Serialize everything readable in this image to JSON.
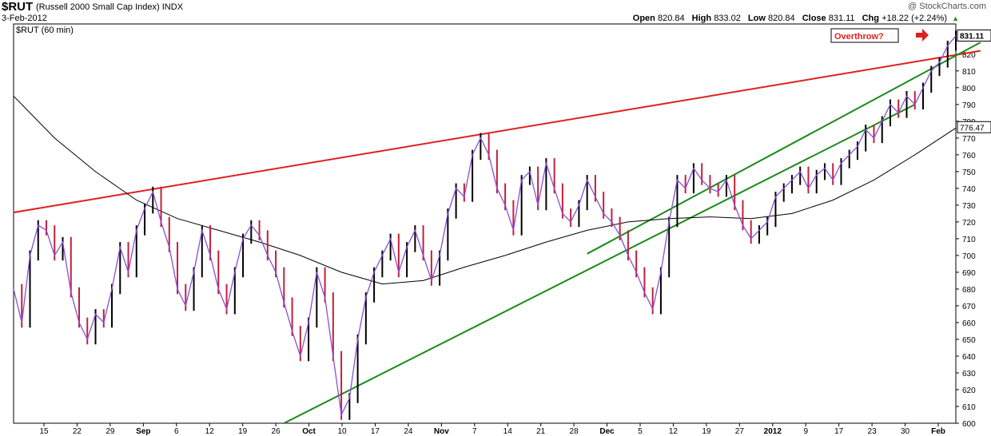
{
  "header": {
    "symbol": "$RUT",
    "name": "(Russell 2000 Small Cap Index)",
    "exchange": "INDX",
    "date": "3-Feb-2012",
    "watermark": "@ StockCharts.com",
    "open_label": "Open",
    "open": "820.84",
    "high_label": "High",
    "high": "833.02",
    "low_label": "Low",
    "low": "820.84",
    "close_label": "Close",
    "close": "831.11",
    "chg_label": "Chg",
    "chg": "+18.22 (+2.24%)",
    "up_arrow": "▲"
  },
  "chart_data": {
    "type": "line",
    "title": "$RUT (60 min)",
    "ylim": [
      600,
      838
    ],
    "y_ticks": [
      600,
      610,
      620,
      630,
      640,
      650,
      660,
      670,
      680,
      690,
      700,
      710,
      720,
      730,
      740,
      750,
      760,
      770,
      780,
      790,
      800,
      810,
      820
    ],
    "x_ticks": [
      {
        "label": "15",
        "bold": false
      },
      {
        "label": "22",
        "bold": false
      },
      {
        "label": "29",
        "bold": false
      },
      {
        "label": "Sep",
        "bold": true
      },
      {
        "label": "6",
        "bold": false
      },
      {
        "label": "12",
        "bold": false
      },
      {
        "label": "19",
        "bold": false
      },
      {
        "label": "26",
        "bold": false
      },
      {
        "label": "Oct",
        "bold": true
      },
      {
        "label": "10",
        "bold": false
      },
      {
        "label": "17",
        "bold": false
      },
      {
        "label": "24",
        "bold": false
      },
      {
        "label": "Nov",
        "bold": true
      },
      {
        "label": "7",
        "bold": false
      },
      {
        "label": "14",
        "bold": false
      },
      {
        "label": "21",
        "bold": false
      },
      {
        "label": "28",
        "bold": false
      },
      {
        "label": "Dec",
        "bold": true
      },
      {
        "label": "5",
        "bold": false
      },
      {
        "label": "12",
        "bold": false
      },
      {
        "label": "19",
        "bold": false
      },
      {
        "label": "27",
        "bold": false
      },
      {
        "label": "2012",
        "bold": true
      },
      {
        "label": "9",
        "bold": false
      },
      {
        "label": "17",
        "bold": false
      },
      {
        "label": "23",
        "bold": false
      },
      {
        "label": "30",
        "bold": false
      },
      {
        "label": "Feb",
        "bold": true
      }
    ],
    "series": [
      {
        "points": [
          [
            0,
            680
          ],
          [
            1,
            660
          ],
          [
            2,
            700
          ],
          [
            3,
            718
          ],
          [
            4,
            715
          ],
          [
            5,
            700
          ],
          [
            6,
            708
          ],
          [
            7,
            678
          ],
          [
            8,
            660
          ],
          [
            9,
            650
          ],
          [
            10,
            665
          ],
          [
            11,
            660
          ],
          [
            12,
            680
          ],
          [
            13,
            705
          ],
          [
            14,
            690
          ],
          [
            15,
            715
          ],
          [
            16,
            728
          ],
          [
            17,
            738
          ],
          [
            18,
            720
          ],
          [
            19,
            705
          ],
          [
            20,
            680
          ],
          [
            21,
            670
          ],
          [
            22,
            690
          ],
          [
            23,
            715
          ],
          [
            24,
            700
          ],
          [
            25,
            680
          ],
          [
            26,
            668
          ],
          [
            27,
            690
          ],
          [
            28,
            710
          ],
          [
            29,
            718
          ],
          [
            30,
            712
          ],
          [
            31,
            700
          ],
          [
            32,
            690
          ],
          [
            33,
            672
          ],
          [
            34,
            655
          ],
          [
            35,
            640
          ],
          [
            36,
            660
          ],
          [
            37,
            690
          ],
          [
            38,
            675
          ],
          [
            39,
            640
          ],
          [
            40,
            605
          ],
          [
            41,
            615
          ],
          [
            42,
            650
          ],
          [
            43,
            675
          ],
          [
            44,
            690
          ],
          [
            45,
            700
          ],
          [
            46,
            710
          ],
          [
            47,
            690
          ],
          [
            48,
            705
          ],
          [
            49,
            715
          ],
          [
            50,
            700
          ],
          [
            51,
            685
          ],
          [
            52,
            700
          ],
          [
            53,
            725
          ],
          [
            54,
            740
          ],
          [
            55,
            735
          ],
          [
            56,
            760
          ],
          [
            57,
            770
          ],
          [
            58,
            760
          ],
          [
            59,
            740
          ],
          [
            60,
            730
          ],
          [
            61,
            715
          ],
          [
            62,
            745
          ],
          [
            63,
            750
          ],
          [
            64,
            730
          ],
          [
            65,
            755
          ],
          [
            66,
            740
          ],
          [
            67,
            725
          ],
          [
            68,
            720
          ],
          [
            69,
            730
          ],
          [
            70,
            745
          ],
          [
            71,
            735
          ],
          [
            72,
            725
          ],
          [
            73,
            720
          ],
          [
            74,
            712
          ],
          [
            75,
            700
          ],
          [
            76,
            690
          ],
          [
            77,
            678
          ],
          [
            78,
            668
          ],
          [
            79,
            690
          ],
          [
            80,
            720
          ],
          [
            81,
            745
          ],
          [
            82,
            740
          ],
          [
            83,
            752
          ],
          [
            84,
            745
          ],
          [
            85,
            740
          ],
          [
            86,
            738
          ],
          [
            87,
            745
          ],
          [
            88,
            730
          ],
          [
            89,
            718
          ],
          [
            90,
            710
          ],
          [
            91,
            715
          ],
          [
            92,
            720
          ],
          [
            93,
            735
          ],
          [
            94,
            740
          ],
          [
            95,
            745
          ],
          [
            96,
            750
          ],
          [
            97,
            740
          ],
          [
            98,
            748
          ],
          [
            99,
            752
          ],
          [
            100,
            745
          ],
          [
            101,
            755
          ],
          [
            102,
            760
          ],
          [
            103,
            765
          ],
          [
            104,
            775
          ],
          [
            105,
            770
          ],
          [
            106,
            780
          ],
          [
            107,
            790
          ],
          [
            108,
            785
          ],
          [
            109,
            795
          ],
          [
            110,
            790
          ],
          [
            111,
            800
          ],
          [
            112,
            810
          ],
          [
            113,
            815
          ],
          [
            114,
            825
          ],
          [
            115,
            831
          ]
        ],
        "note": "price"
      },
      {
        "points": [
          [
            0,
            795
          ],
          [
            5,
            770
          ],
          [
            10,
            750
          ],
          [
            15,
            733
          ],
          [
            20,
            722
          ],
          [
            25,
            715
          ],
          [
            30,
            708
          ],
          [
            35,
            700
          ],
          [
            40,
            690
          ],
          [
            45,
            683
          ],
          [
            50,
            685
          ],
          [
            55,
            693
          ],
          [
            60,
            700
          ],
          [
            65,
            708
          ],
          [
            70,
            715
          ],
          [
            75,
            720
          ],
          [
            80,
            722
          ],
          [
            85,
            723
          ],
          [
            90,
            722
          ],
          [
            95,
            725
          ],
          [
            100,
            733
          ],
          [
            105,
            745
          ],
          [
            110,
            760
          ],
          [
            115,
            776
          ]
        ],
        "note": "moving-average"
      }
    ],
    "trendlines": [
      {
        "color": "#e0201f",
        "from": [
          -2,
          724
        ],
        "to": [
          118,
          822
        ]
      },
      {
        "color": "#1a8a1a",
        "from": [
          33,
          600
        ],
        "to": [
          110,
          790
        ]
      },
      {
        "color": "#1a8a1a",
        "from": [
          70,
          701
        ],
        "to": [
          118,
          827
        ]
      }
    ],
    "last_price": "831.11",
    "ma_label": "776.47",
    "annotation": "Overthrow?"
  },
  "colors": {
    "price_up": "#000000",
    "price_down": "#c0203a",
    "wave": "#8a4fd8",
    "ma": "#000000",
    "resistance": "#e0201f",
    "channel": "#1a8a1a",
    "annotation": "#e0201f"
  }
}
